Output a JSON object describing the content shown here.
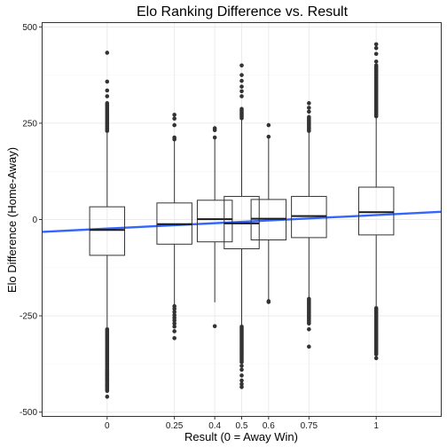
{
  "chart_data": {
    "type": "boxplot",
    "title": "Elo Ranking Difference vs. Result",
    "xlabel": "Result (0 = Away Win)",
    "ylabel": "Elo Difference (Home-Away)",
    "ylim": [
      -510,
      510
    ],
    "yticks": [
      -500,
      -250,
      0,
      250,
      500
    ],
    "ytick_labels": [
      "-500",
      "-250",
      "0",
      "250",
      "500"
    ],
    "categories": [
      "0",
      "0.25",
      "0.4",
      "0.5",
      "0.6",
      "0.75",
      "1"
    ],
    "x_values": [
      0,
      0.25,
      0.4,
      0.5,
      0.6,
      0.75,
      1
    ],
    "xlim": [
      -0.24,
      1.24
    ],
    "grid": true,
    "boxes": [
      {
        "category": "0",
        "q1": -93,
        "median": -27,
        "q3": 33,
        "whisker_low": -282,
        "whisker_high": 225,
        "outliers_low_range": [
          -285,
          -445
        ],
        "outliers_high_range": [
          230,
          305
        ],
        "outliers": [
          -460,
          -430,
          -415,
          -405,
          -400,
          320,
          335,
          358,
          433
        ]
      },
      {
        "category": "0.25",
        "q1": -64,
        "median": -12,
        "q3": 43,
        "whisker_low": -220,
        "whisker_high": 205,
        "outliers": [
          -225,
          -232,
          -240,
          -248,
          -255,
          -262,
          -270,
          -278,
          -290,
          -308,
          208,
          213,
          245,
          262,
          272
        ]
      },
      {
        "category": "0.4",
        "q1": -58,
        "median": 1,
        "q3": 50,
        "whisker_low": -215,
        "whisker_high": 210,
        "outliers": [
          -277,
          213,
          232,
          237
        ]
      },
      {
        "category": "0.5",
        "q1": -76,
        "median": -10,
        "q3": 60,
        "whisker_low": -275,
        "whisker_high": 260,
        "outliers_low_range": [
          -278,
          -370
        ],
        "outliers_high_range": [
          263,
          290
        ],
        "outliers": [
          -380,
          -390,
          -405,
          -418,
          -427,
          -435,
          320,
          333,
          345,
          360,
          375,
          400
        ]
      },
      {
        "category": "0.6",
        "q1": -53,
        "median": 2,
        "q3": 52,
        "whisker_low": -210,
        "whisker_high": 213,
        "outliers": [
          -212,
          -214,
          215,
          245
        ]
      },
      {
        "category": "0.75",
        "q1": -47,
        "median": 9,
        "q3": 60,
        "whisker_low": -205,
        "whisker_high": 230,
        "outliers_low_range": [
          -205,
          -270
        ],
        "outliers_high_range": [
          230,
          268
        ],
        "outliers": [
          -285,
          -330,
          280,
          290,
          302
        ]
      },
      {
        "category": "1",
        "q1": -40,
        "median": 19,
        "q3": 84,
        "whisker_low": -225,
        "whisker_high": 265,
        "outliers_low_range": [
          -228,
          -350
        ],
        "outliers_high_range": [
          268,
          400
        ],
        "outliers": [
          -360,
          410,
          430,
          445,
          455
        ]
      }
    ],
    "trend_line": {
      "color": "#3366FF",
      "x": [
        -0.24,
        1.24
      ],
      "y": [
        -32,
        20
      ]
    },
    "colors": {
      "box_stroke": "#333333",
      "box_fill": "#ffffff",
      "grid": "#ebebeb",
      "panel_border": "#333333",
      "point": "#333333"
    }
  }
}
